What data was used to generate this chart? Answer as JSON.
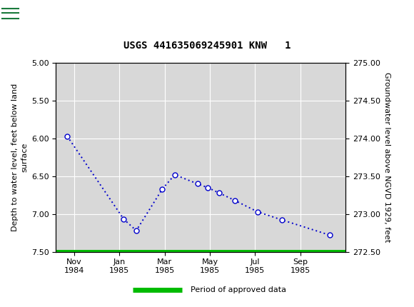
{
  "title": "USGS 441635069245901 KNW   1",
  "header_bg_color": "#1a7a3c",
  "plot_bg_color": "#d8d8d8",
  "fig_bg_color": "#ffffff",
  "left_ylabel": "Depth to water level, feet below land\nsurface",
  "right_ylabel": "Groundwater level above NGVD 1929, feet",
  "ylim_left": [
    5.0,
    7.5
  ],
  "ylim_right": [
    272.5,
    275.0
  ],
  "yticks_left": [
    5.0,
    5.5,
    6.0,
    6.5,
    7.0,
    7.5
  ],
  "yticks_right": [
    272.5,
    273.0,
    273.5,
    274.0,
    274.5,
    275.0
  ],
  "ytick_labels_left": [
    "5.00",
    "5.50",
    "6.00",
    "6.50",
    "7.00",
    "7.50"
  ],
  "ytick_labels_right": [
    "272.50",
    "273.00",
    "273.50",
    "274.00",
    "274.50",
    "275.00"
  ],
  "line_color": "#0000cc",
  "marker_face_color": "#ffffff",
  "marker_edge_color": "#0000cc",
  "marker_size": 5,
  "legend_label": "Period of approved data",
  "legend_line_color": "#00bb00",
  "tick_positions_x": [
    0,
    2,
    4,
    6,
    8,
    10
  ],
  "tick_labels_x": [
    "Nov\n1984",
    "Jan\n1985",
    "Mar\n1985",
    "May\n1985",
    "Jul\n1985",
    "Sep\n1985"
  ],
  "xlim": [
    -0.8,
    12.0
  ],
  "data_points_x": [
    -0.3,
    2.2,
    2.75,
    3.9,
    4.45,
    5.45,
    5.9,
    6.4,
    7.1,
    8.1,
    9.2,
    11.3
  ],
  "data_points_depth": [
    5.97,
    7.07,
    7.22,
    6.67,
    6.48,
    6.6,
    6.65,
    6.72,
    6.82,
    6.97,
    7.08,
    7.28
  ],
  "title_fontsize": 10,
  "axis_fontsize": 8,
  "ylabel_fontsize": 8
}
